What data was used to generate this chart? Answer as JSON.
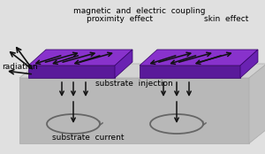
{
  "bg_color": "#e0e0e0",
  "substrate_top_color": "#d2d2d2",
  "substrate_front_color": "#b8b8b8",
  "substrate_right_color": "#c0c0c0",
  "conductor_top_color": "#8832cc",
  "conductor_front_color": "#5a1a9a",
  "conductor_right_color": "#6a22b2",
  "text_color": "#000000",
  "arrow_color": "#111111",
  "loop_color": "#666666",
  "labels": {
    "top1": "magnetic  and  electric  coupling",
    "top2": "proximity  effect",
    "top3": "skin  effect",
    "left": "radiation",
    "middle": "substrate  injection",
    "bottom": "substrate  current"
  }
}
